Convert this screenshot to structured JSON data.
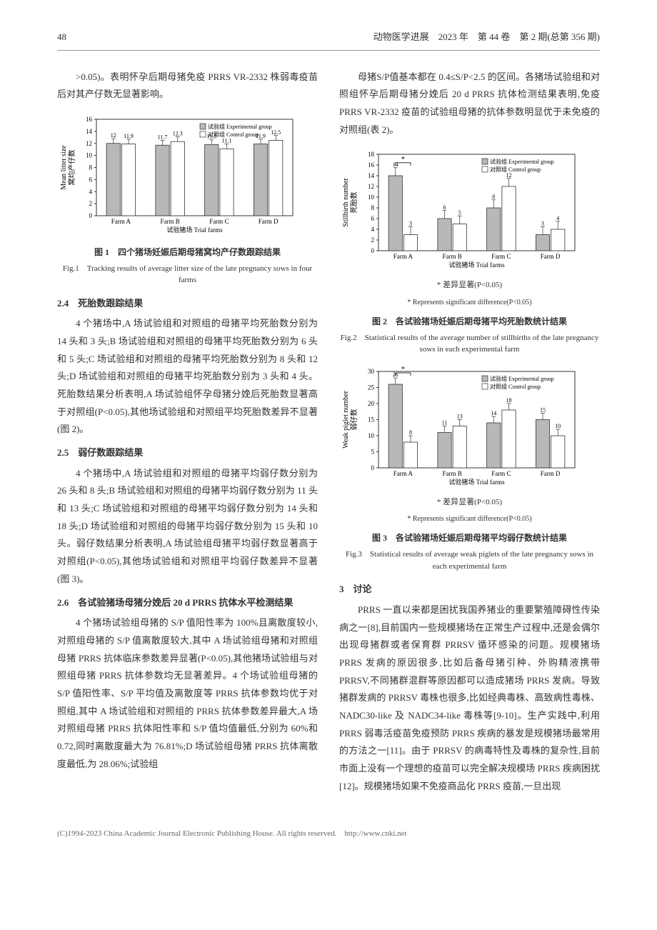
{
  "header": {
    "page_num": "48",
    "journal_info": "动物医学进展　2023 年　第 44 卷　第 2 期(总第 356 期)"
  },
  "left_col": {
    "para1": ">0.05)。表明怀孕后期母猪免疫 PRRS VR-2332 株弱毒疫苗后对其产仔数无显著影响。",
    "sec24_title": "2.4　死胎数跟踪结果",
    "sec24_body": "4 个猪场中,A 场试验组和对照组的母猪平均死胎数分别为 14 头和 3 头;B 场试验组和对照组的母猪平均死胎数分别为 6 头和 5 头;C 场试验组和对照组的母猪平均死胎数分别为 8 头和 12 头;D 场试验组和对照组的母猪平均死胎数分别为 3 头和 4 头。死胎数结果分析表明,A 场试验组怀孕母猪分娩后死胎数显著高于对照组(P<0.05),其他场试验组和对照组平均死胎数差异不显著(图 2)。",
    "sec25_title": "2.5　弱仔数跟踪结果",
    "sec25_body": "4 个猪场中,A 场试验组和对照组的母猪平均弱仔数分别为 26 头和 8 头;B 场试验组和对照组的母猪平均弱仔数分别为 11 头和 13 头;C 场试验组和对照组的母猪平均弱仔数分别为 14 头和 18 头;D 场试验组和对照组的母猪平均弱仔数分别为 15 头和 10 头。弱仔数结果分析表明,A 场试验组母猪平均弱仔数显著高于对照组(P<0.05),其他场试验组和对照组平均弱仔数差异不显著(图 3)。",
    "sec26_title": "2.6　各试验猪场母猪分娩后 20 d PRRS 抗体水平检测结果",
    "sec26_body": "4 个猪场试验组母猪的 S/P 值阳性率为 100%且离散度较小,对照组母猪的 S/P 值离散度较大,其中 A 场试验组母猪和对照组母猪 PRRS 抗体临床参数差异显著(P<0.05),其他猪场试验组与对照组母猪 PRRS 抗体参数均无显著差异。4 个场试验组母猪的 S/P 值阳性率、S/P 平均值及离散度等 PRRS 抗体参数均优于对照组,其中 A 场试验组和对照组的 PRRS 抗体参数差异最大,A 场对照组母猪 PRRS 抗体阳性率和 S/P 值均值最低,分别为 60%和0.72,同时离散度最大为 76.81%;D 场试验组母猪 PRRS 抗体离散度最低,为 28.06%;试验组"
  },
  "right_col": {
    "para1": "母猪S/P值基本都在 0.4≤S/P<2.5 的区间。各猪场试验组和对照组怀孕后期母猪分娩后 20 d PRRS 抗体检测结果表明,免疫 PRRS VR-2332 疫苗的试验组母猪的抗体参数明显优于未免疫的对照组(表 2)。",
    "sec3_title": "3　讨论",
    "sec3_body": "PRRS 一直以来都是困扰我国养猪业的重要繁殖障碍性传染病之一[8],目前国内一些规模猪场在正常生产过程中,还是会偶尔出现母猪群或者保育群 PRRSV 循环感染的问题。规模猪场 PRRS 发病的原因很多,比如后备母猪引种、外购精液携带 PRRSV,不同猪群混群等原因都可以造成猪场 PRRS 发病。导致猪群发病的 PRRSV 毒株也很多,比如经典毒株、高致病性毒株、NADC30-like 及 NADC34-like 毒株等[9-10]。生产实践中,利用 PRRS 弱毒活疫苗免疫预防 PRRS 疾病的暴发是规模猪场最常用的方法之一[11]。由于 PRRSV 的病毒特性及毒株的复杂性,目前市面上没有一个理想的疫苗可以完全解决规模场 PRRS 疾病困扰[12]。规模猪场如果不免疫商品化 PRRS 疫苗,一旦出现"
  },
  "fig1": {
    "type": "bar",
    "title_cn": "图 1　四个猪场妊娠后期母猪窝均产仔数跟踪结果",
    "title_en": "Fig.1　Tracking results of average litter size of the late pregnancy sows in four farms",
    "legend_exp": "试验组 Experimental group",
    "legend_ctrl": "对照组 Control group",
    "y_label_cn": "窝均产仔数",
    "y_label_en": "Mean litter size",
    "x_label": "试验猪场 Trial farms",
    "categories": [
      "Farm A",
      "Farm B",
      "Farm C",
      "Farm D"
    ],
    "exp_values": [
      12,
      11.7,
      11.8,
      11.9
    ],
    "ctrl_values": [
      11.9,
      12.3,
      11.1,
      12.5
    ],
    "ymax": 16,
    "ytick_step": 2,
    "exp_color": "#b8b8b8",
    "ctrl_color": "#ffffff",
    "border_color": "#333333",
    "bg_color": "#ffffff",
    "error_bar": 0.8
  },
  "fig2": {
    "type": "bar",
    "title_cn": "图 2　各试验猪场妊娠后期母猪平均死胎数统计结果",
    "title_en": "Fig.2　Statistical results of the average number of stillbirths of the late pregnancy sows in each experimental farm",
    "note_cn": "* 差异显著(P<0.05)",
    "note_en": "* Represents significant difference(P<0.05)",
    "legend_exp": "试验组 Experimental group",
    "legend_ctrl": "对照组 Control group",
    "y_label_cn": "死胎数",
    "y_label_en": "Stillbirth number",
    "x_label": "试验猪场 Trial farms",
    "categories": [
      "Farm A",
      "Farm B",
      "Farm C",
      "Farm D"
    ],
    "exp_values": [
      14,
      6,
      8,
      3
    ],
    "ctrl_values": [
      3,
      5,
      12,
      4
    ],
    "ymax": 18,
    "ytick_step": 2,
    "exp_color": "#b8b8b8",
    "ctrl_color": "#ffffff",
    "border_color": "#333333",
    "bg_color": "#ffffff",
    "sig_idx": 0,
    "error_bar": 1.5
  },
  "fig3": {
    "type": "bar",
    "title_cn": "图 3　各试验猪场妊娠后期母猪平均弱仔数统计结果",
    "title_en": "Fig.3　Statistical results of average weak piglets of the late pregnancy sows in each experimental farm",
    "note_cn": "* 差异显著(P<0.05)",
    "note_en": "* Represents significant difference(P<0.05)",
    "legend_exp": "试验组 Experimental group",
    "legend_ctrl": "对照组 Control group",
    "y_label_cn": "弱仔数",
    "y_label_en": "Weak piglet number",
    "x_label": "试验猪场 Trial farms",
    "categories": [
      "Farm A",
      "Farm B",
      "Farm C",
      "Farm D"
    ],
    "exp_values": [
      26,
      11,
      14,
      15
    ],
    "ctrl_values": [
      8,
      13,
      18,
      10
    ],
    "ymax": 30,
    "ytick_step": 5,
    "exp_color": "#b8b8b8",
    "ctrl_color": "#ffffff",
    "border_color": "#333333",
    "bg_color": "#ffffff",
    "sig_idx": 0,
    "error_bar": 2
  },
  "footer": "(C)1994-2023 China Academic Journal Electronic Publishing House. All rights reserved.　http://www.cnki.net"
}
